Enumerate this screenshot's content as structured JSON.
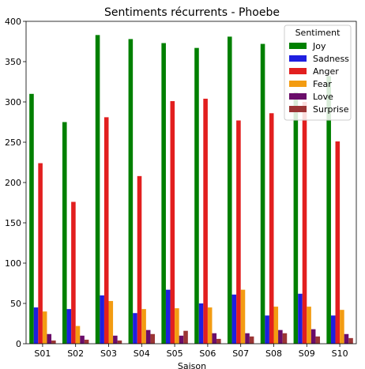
{
  "chart_data": {
    "type": "bar",
    "title": "Sentiments récurrents - Phoebe",
    "xlabel": "Saison",
    "ylabel": "",
    "ylim": [
      0,
      400
    ],
    "yticks": [
      0,
      50,
      100,
      150,
      200,
      250,
      300,
      350,
      400
    ],
    "categories": [
      "S01",
      "S02",
      "S03",
      "S04",
      "S05",
      "S06",
      "S07",
      "S08",
      "S09",
      "S10"
    ],
    "legend": {
      "title": "Sentiment",
      "placement": "top-right"
    },
    "grid": false,
    "series": [
      {
        "name": "Joy",
        "color": "#008000",
        "values": [
          310,
          275,
          383,
          378,
          373,
          367,
          381,
          372,
          312,
          332
        ]
      },
      {
        "name": "Sadness",
        "color": "#1f1fe0",
        "values": [
          45,
          43,
          60,
          38,
          67,
          50,
          61,
          35,
          62,
          35
        ]
      },
      {
        "name": "Anger",
        "color": "#e21f1f",
        "values": [
          224,
          176,
          281,
          208,
          301,
          304,
          277,
          286,
          300,
          251
        ]
      },
      {
        "name": "Fear",
        "color": "#f39c12",
        "values": [
          40,
          22,
          53,
          43,
          44,
          45,
          67,
          46,
          46,
          42
        ]
      },
      {
        "name": "Love",
        "color": "#6a0d6a",
        "values": [
          12,
          10,
          10,
          17,
          10,
          13,
          13,
          17,
          18,
          12
        ]
      },
      {
        "name": "Surprise",
        "color": "#9b3535",
        "values": [
          4,
          5,
          4,
          12,
          16,
          6,
          9,
          13,
          9,
          7
        ]
      }
    ]
  }
}
